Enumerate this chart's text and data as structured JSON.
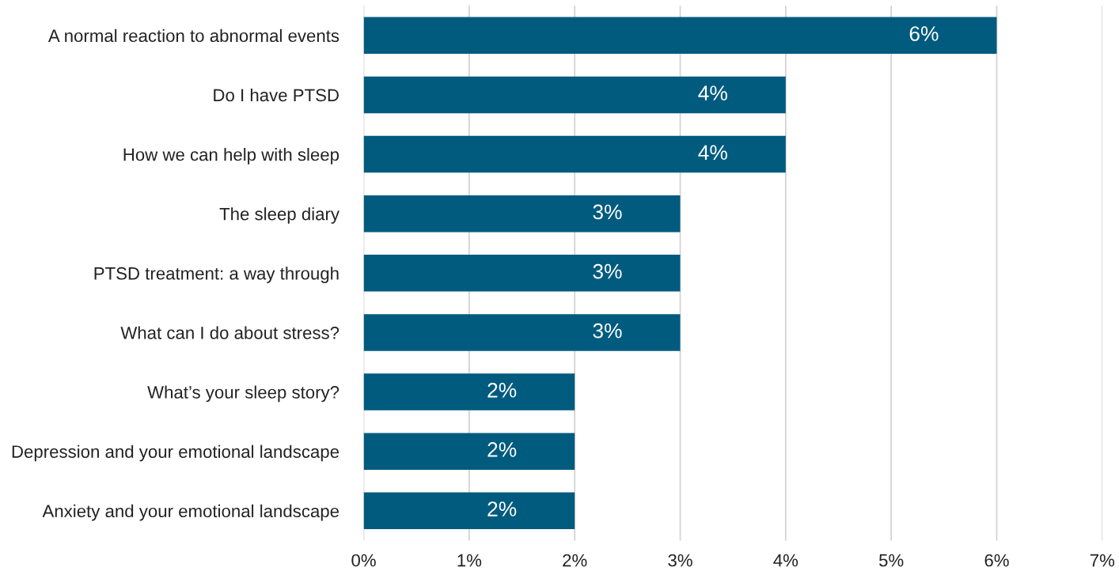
{
  "chart_data": {
    "type": "bar",
    "orientation": "horizontal",
    "categories": [
      "A normal reaction to abnormal events",
      "Do I have PTSD",
      "How we can help with sleep",
      "The sleep diary",
      "PTSD treatment: a way through",
      "What can I do about stress?",
      "What’s your sleep story?",
      "Depression and your emotional landscape",
      "Anxiety and your emotional landscape"
    ],
    "values": [
      6,
      4,
      4,
      3,
      3,
      3,
      2,
      2,
      2
    ],
    "value_labels": [
      "6%",
      "4%",
      "4%",
      "3%",
      "3%",
      "3%",
      "2%",
      "2%",
      "2%"
    ],
    "color": "#005b7f",
    "xlim": [
      0,
      7
    ],
    "xticks": [
      {
        "value": 0,
        "label": "0%"
      },
      {
        "value": 1,
        "label": "1%"
      },
      {
        "value": 2,
        "label": "2%"
      },
      {
        "value": 3,
        "label": "3%"
      },
      {
        "value": 4,
        "label": "4%"
      },
      {
        "value": 5,
        "label": "5%"
      },
      {
        "value": 6,
        "label": "6%"
      },
      {
        "value": 7,
        "label": "7%"
      }
    ],
    "grid": "x"
  }
}
